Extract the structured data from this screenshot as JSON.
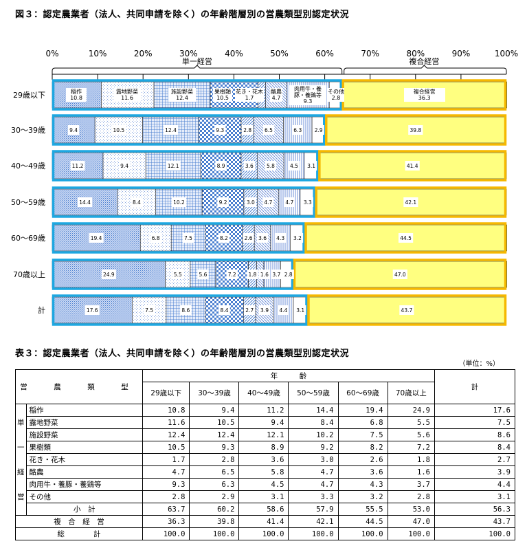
{
  "figure_title": "図３：認定農業者（法人、共同申請を除く）の年齢階層別の営農類型別認定状況",
  "chart_data": {
    "type": "stacked-bar-horizontal",
    "xlim": [
      0,
      100
    ],
    "x_ticks": [
      "0%",
      "10%",
      "20%",
      "30%",
      "40%",
      "50%",
      "60%",
      "70%",
      "80%",
      "90%",
      "100%"
    ],
    "group_labels": {
      "single": "単一経営",
      "complex": "複合経営"
    },
    "categories": [
      "29歳以下",
      "30～39歳",
      "40～49歳",
      "50～59歳",
      "60～69歳",
      "70歳以上",
      "計"
    ],
    "series": [
      {
        "name": "稲作",
        "values": [
          10.8,
          9.4,
          11.2,
          14.4,
          19.4,
          24.9,
          17.6
        ]
      },
      {
        "name": "露地野菜",
        "values": [
          11.6,
          10.5,
          9.4,
          8.4,
          6.8,
          5.5,
          7.5
        ]
      },
      {
        "name": "施設野菜",
        "values": [
          12.4,
          12.4,
          12.1,
          10.2,
          7.5,
          5.6,
          8.6
        ]
      },
      {
        "name": "果樹類",
        "values": [
          10.5,
          9.3,
          8.9,
          9.2,
          8.2,
          7.2,
          8.4
        ]
      },
      {
        "name": "花き・花木",
        "values": [
          1.7,
          2.8,
          3.6,
          3.0,
          2.6,
          1.8,
          2.7
        ]
      },
      {
        "name": "酪農",
        "values": [
          4.7,
          6.5,
          5.8,
          4.7,
          3.6,
          1.6,
          3.9
        ]
      },
      {
        "name": "肉用牛・養豚・養鶏等",
        "values": [
          9.3,
          6.3,
          4.5,
          4.7,
          4.3,
          3.7,
          4.4
        ]
      },
      {
        "name": "その他",
        "values": [
          2.8,
          2.9,
          3.1,
          3.3,
          3.2,
          2.8,
          3.1
        ]
      },
      {
        "name": "複合経営",
        "values": [
          36.3,
          39.8,
          41.4,
          42.1,
          44.5,
          47.0,
          43.7
        ]
      }
    ],
    "colors": {
      "single_outline": "#1ea7e1",
      "complex_outline": "#f5b800",
      "complex_fill": "#ffff80",
      "pattern": "#4a7fd0"
    }
  },
  "table": {
    "title": "表３：認定農業者（法人、共同申請を除く）の年齢階層別の営農類型別認定状況",
    "unit": "（単位：%）",
    "type_header": "営　農　類　型",
    "age_header": "年　　　齢",
    "total_header": "計",
    "columns": [
      "29歳以下",
      "30～39歳",
      "40～49歳",
      "50～59歳",
      "60～69歳",
      "70歳以上"
    ],
    "single_vertical": [
      "単",
      "一",
      "経",
      "営"
    ],
    "rows": [
      {
        "label": "稲作",
        "values": [
          "10.8",
          "9.4",
          "11.2",
          "14.4",
          "19.4",
          "24.9",
          "17.6"
        ]
      },
      {
        "label": "露地野菜",
        "values": [
          "11.6",
          "10.5",
          "9.4",
          "8.4",
          "6.8",
          "5.5",
          "7.5"
        ]
      },
      {
        "label": "施設野菜",
        "values": [
          "12.4",
          "12.4",
          "12.1",
          "10.2",
          "7.5",
          "5.6",
          "8.6"
        ]
      },
      {
        "label": "果樹類",
        "values": [
          "10.5",
          "9.3",
          "8.9",
          "9.2",
          "8.2",
          "7.2",
          "8.4"
        ]
      },
      {
        "label": "花き・花木",
        "values": [
          "1.7",
          "2.8",
          "3.6",
          "3.0",
          "2.6",
          "1.8",
          "2.7"
        ]
      },
      {
        "label": "酪農",
        "values": [
          "4.7",
          "6.5",
          "5.8",
          "4.7",
          "3.6",
          "1.6",
          "3.9"
        ]
      },
      {
        "label": "肉用牛・養豚・養鶏等",
        "values": [
          "9.3",
          "6.3",
          "4.5",
          "4.7",
          "4.3",
          "3.7",
          "4.4"
        ]
      },
      {
        "label": "その他",
        "values": [
          "2.8",
          "2.9",
          "3.1",
          "3.3",
          "3.2",
          "2.8",
          "3.1"
        ]
      },
      {
        "label": "小　計",
        "values": [
          "63.7",
          "60.2",
          "58.6",
          "57.9",
          "55.5",
          "53.0",
          "56.3"
        ]
      }
    ],
    "complex": {
      "label": "複　合　経　営",
      "values": [
        "36.3",
        "39.8",
        "41.4",
        "42.1",
        "44.5",
        "47.0",
        "43.7"
      ]
    },
    "grand": {
      "label": "総　　　　計",
      "values": [
        "100.0",
        "100.0",
        "100.0",
        "100.0",
        "100.0",
        "100.0",
        "100.0"
      ]
    }
  }
}
